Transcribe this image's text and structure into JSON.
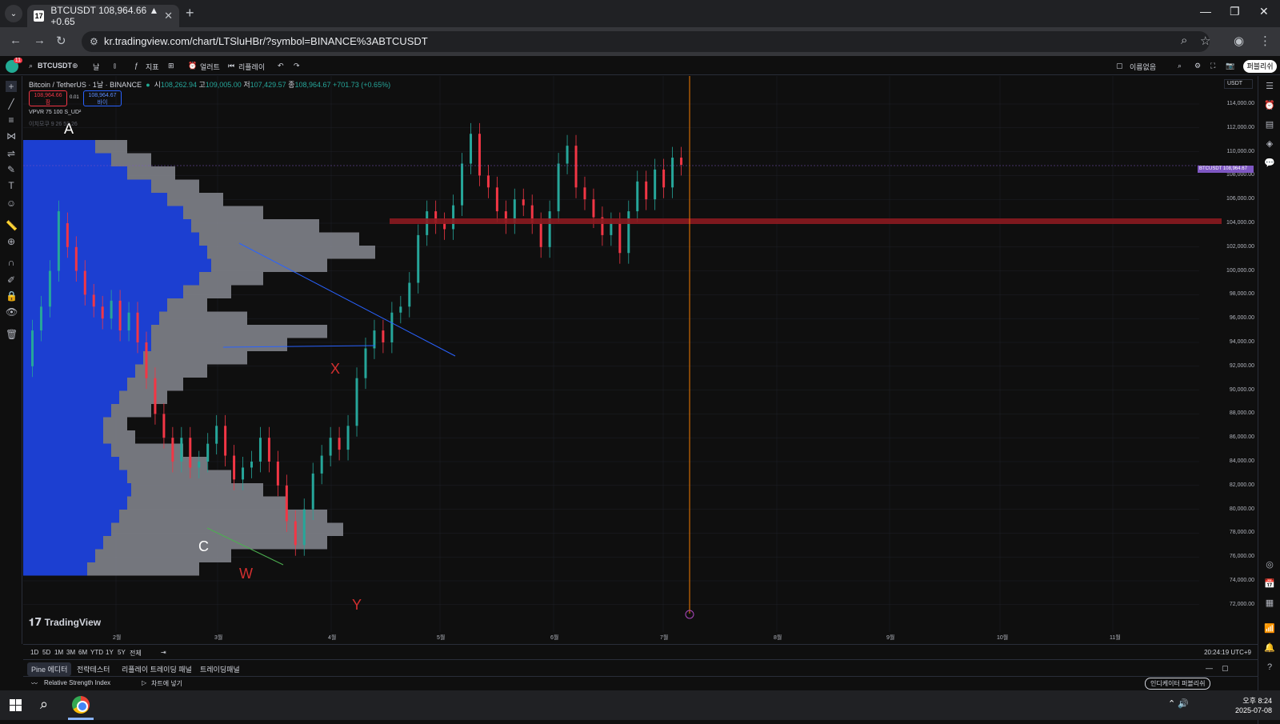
{
  "browser": {
    "tab_title": "BTCUSDT 108,964.66 ▲ +0.65",
    "tab_favicon": "17",
    "new_tab": "+",
    "tab_close": "✕",
    "url": "kr.tradingview.com/chart/LTSluHBr/?symbol=BINANCE%3ABTCUSDT"
  },
  "tv_toolbar": {
    "notification_count": "11",
    "symbol": "BTCUSDT",
    "interval": "날",
    "indicators": "지표",
    "alert": "얼러트",
    "replay": "리플레이",
    "layout_name": "이름없음",
    "publish": "퍼블리쉬"
  },
  "legend": {
    "symbol_line": "Bitcoin / TetherUS · 1날 · BINANCE",
    "open_label": "시",
    "open": "108,262.94",
    "high_label": "고",
    "high": "109,005.00",
    "low_label": "저",
    "low": "107,429.57",
    "close_label": "종",
    "close": "108,964.67",
    "change": "+701.73 (+0.65%)",
    "sell_price": "108,964.66",
    "sell_label": "팜",
    "spread": "0.01",
    "buy_price": "108,964.67",
    "buy_label": "바이",
    "vpvr": "VPVR 75 100 S_UD²",
    "vpvr_sub": "이치모쿠 9 26 52 26"
  },
  "y_axis": [
    "114,000.00",
    "112,000.00",
    "110,000.00",
    "108,000.00",
    "106,000.00",
    "104,000.00",
    "102,000.00",
    "100,000.00",
    "98,000.00",
    "96,000.00",
    "94,000.00",
    "92,000.00",
    "90,000.00",
    "88,000.00",
    "86,000.00",
    "84,000.00",
    "82,000.00",
    "80,000.00",
    "78,000.00",
    "76,000.00",
    "74,000.00",
    "72,000.00"
  ],
  "price_badge": "BTCUSDT  108,964.67",
  "quote_currency": "USDT",
  "x_axis": [
    "2월",
    "3월",
    "4월",
    "5월",
    "6월",
    "7월",
    "8월",
    "9월",
    "10월",
    "11월"
  ],
  "annotations": {
    "a": "A",
    "c": "C",
    "w": "W",
    "x": "X",
    "y": "Y"
  },
  "brand": "TradingView",
  "ranges": [
    "1D",
    "5D",
    "1M",
    "3M",
    "6M",
    "YTD",
    "1Y",
    "5Y",
    "전체"
  ],
  "clock": "20:24:19 UTC+9",
  "bottom_tabs": [
    "Pine 에디터",
    "전략테스터",
    "리플레이 트레이딩 패널",
    "트레이딩패널"
  ],
  "rsi_row": {
    "name": "Relative Strength Index",
    "open_chart": "차트에 넣기",
    "right_button": "인디케이터 퍼블리쉬"
  },
  "taskbar": {
    "time": "오후 8:24",
    "date": "2025-07-08"
  },
  "colors": {
    "up": "#26a69a",
    "down": "#f23645",
    "vp_blue": "#1c3fd1",
    "vp_gray": "#7a7c84",
    "resistance": "#8b1a1f",
    "cursor": "#f57c00",
    "price_line": "#7e57c2"
  }
}
